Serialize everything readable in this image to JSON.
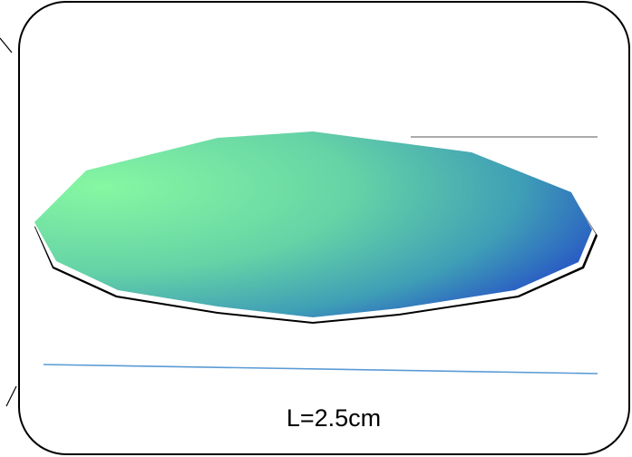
{
  "label": "L=2.5cm"
}
